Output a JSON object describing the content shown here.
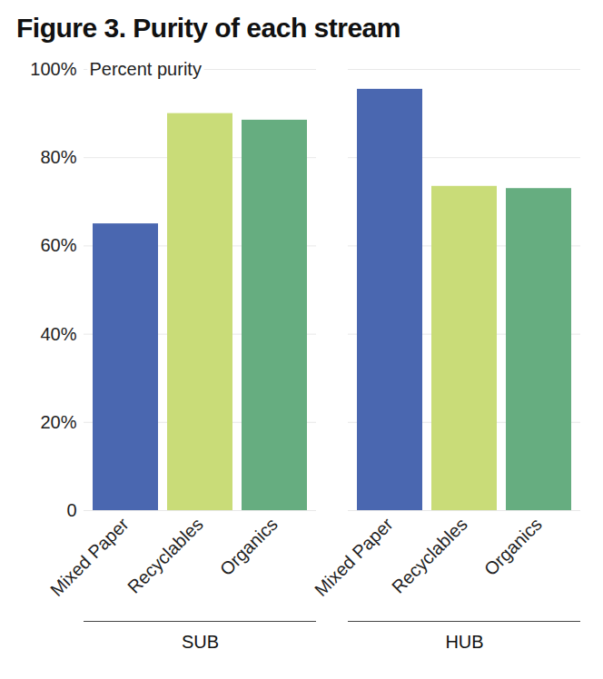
{
  "chart_data": {
    "type": "bar",
    "title": "Figure 3. Purity of each stream",
    "ylabel": "Percent purity",
    "categories": [
      "SUB",
      "HUB"
    ],
    "series": [
      {
        "name": "Mixed Paper",
        "color": "#4a67b0",
        "values": [
          65,
          95.5
        ]
      },
      {
        "name": "Recyclables",
        "color": "#c9dc78",
        "values": [
          90,
          73.5
        ]
      },
      {
        "name": "Organics",
        "color": "#66ad80",
        "values": [
          88.5,
          73
        ]
      }
    ],
    "ylim": [
      0,
      100
    ],
    "yticks": [
      0,
      {
        "value": 20,
        "label": "20%"
      },
      {
        "value": 40,
        "label": "40%"
      },
      {
        "value": 60,
        "label": "60%"
      },
      {
        "value": 80,
        "label": "80%"
      },
      {
        "value": 100,
        "label": "100%"
      }
    ],
    "grid": true
  }
}
